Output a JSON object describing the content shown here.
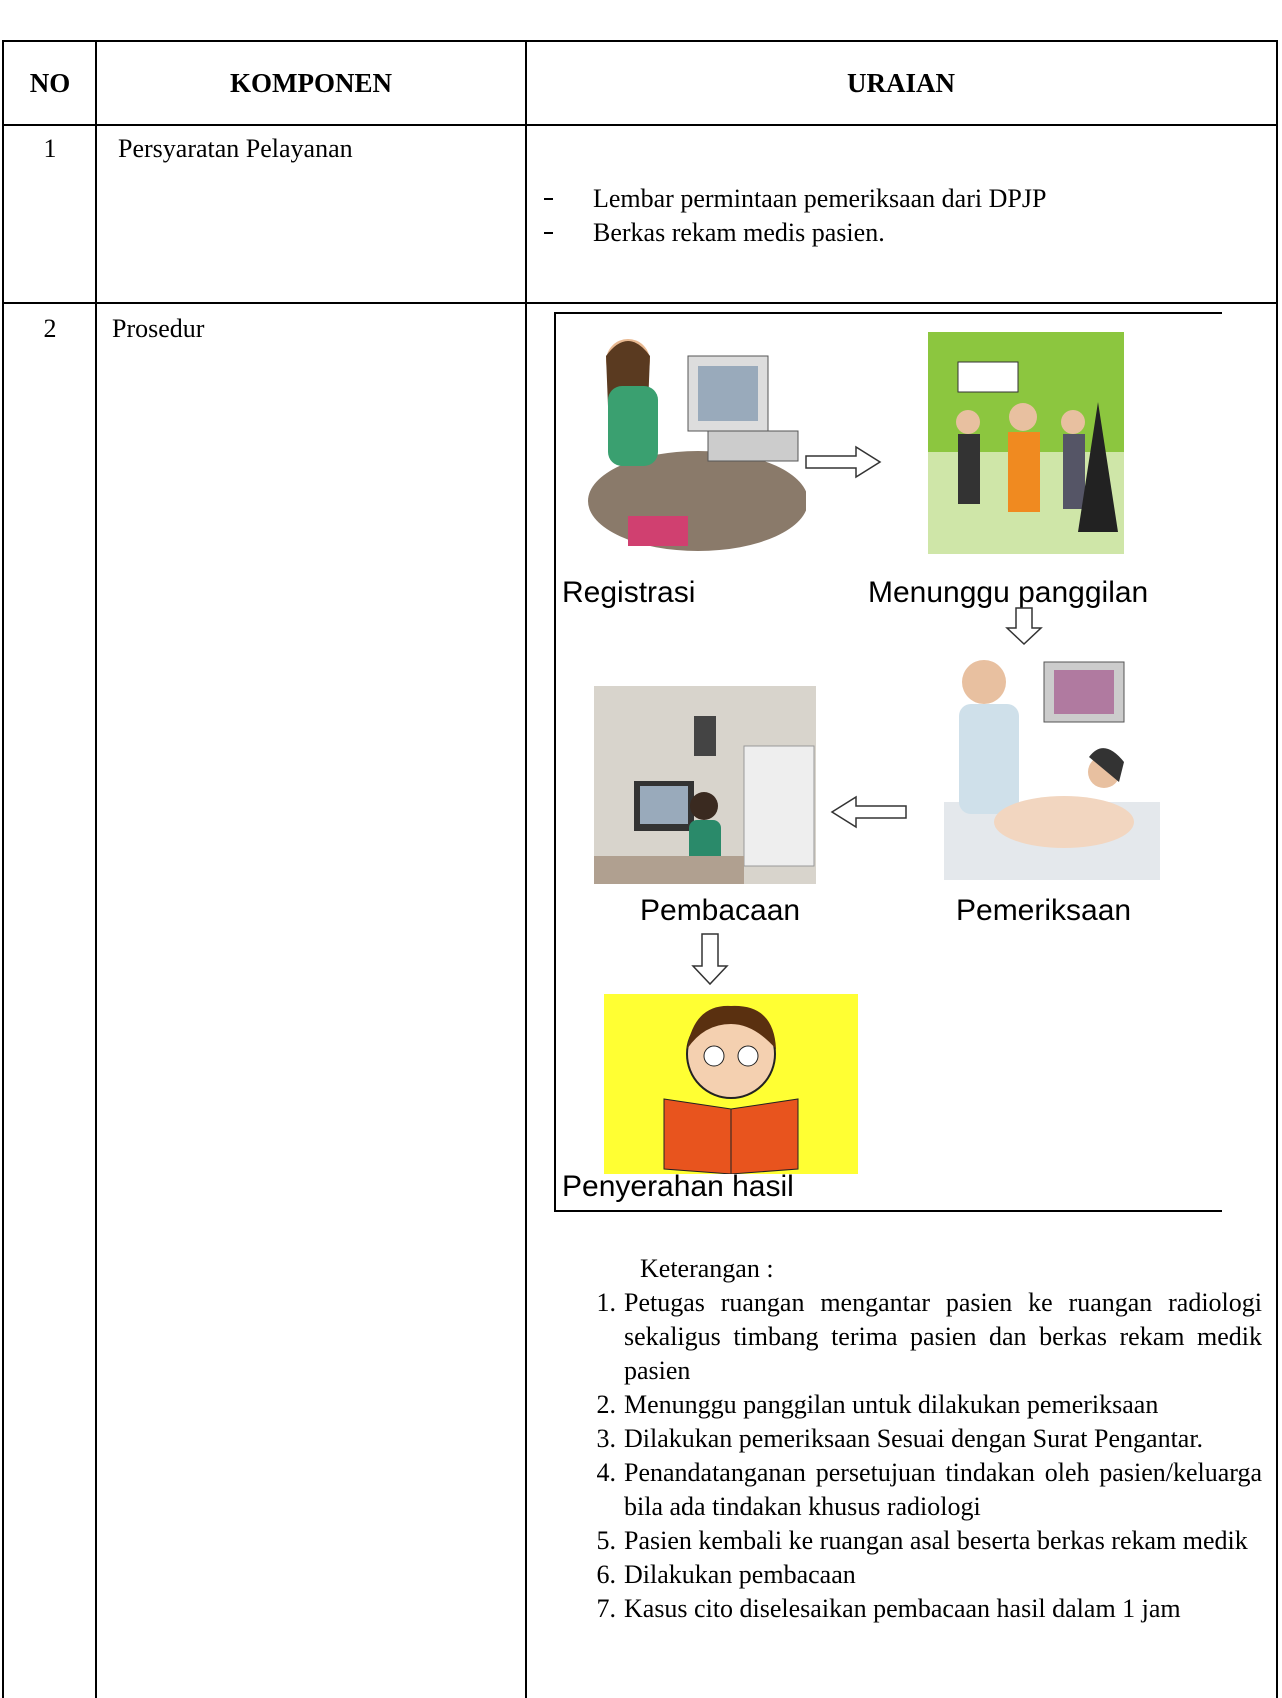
{
  "table": {
    "header": [
      "NO",
      "KOMPONEN",
      "URAIAN"
    ],
    "rows": [
      {
        "no": "1",
        "komponen": "Persyaratan Pelayanan",
        "uraian": [
          "Lembar permintaan pemeriksaan dari DPJP",
          "Berkas rekam medis pasien."
        ]
      },
      {
        "no": "2",
        "komponen": "Prosedur",
        "flow": [
          "Registrasi",
          "Menunggu panggilan",
          "Pemeriksaan",
          "Pembacaan",
          "Penyerahan hasil"
        ],
        "keterangan_title": "Keterangan :",
        "keterangan": [
          {
            "num": "1.",
            "text": "Petugas ruangan mengantar pasien ke ruangan radiologi sekaligus timbang terima pasien dan berkas rekam medik pasien"
          },
          {
            "num": "2.",
            "text": "Menunggu panggilan untuk dilakukan pemeriksaan"
          },
          {
            "num": "3.",
            "text": "Dilakukan pemeriksaan Sesuai dengan Surat Pengantar."
          },
          {
            "num": "4.",
            "text": "Penandatanganan persetujuan tindakan oleh pasien/keluarga bila ada tindakan khusus radiologi"
          },
          {
            "num": "5.",
            "text": "Pasien kembali ke ruangan asal beserta berkas rekam medik"
          },
          {
            "num": "6.",
            "text": "Dilakukan pembacaan"
          },
          {
            "num": "7.",
            "text": "Kasus cito diselesaikan pembacaan hasil dalam 1 jam"
          }
        ]
      }
    ]
  }
}
